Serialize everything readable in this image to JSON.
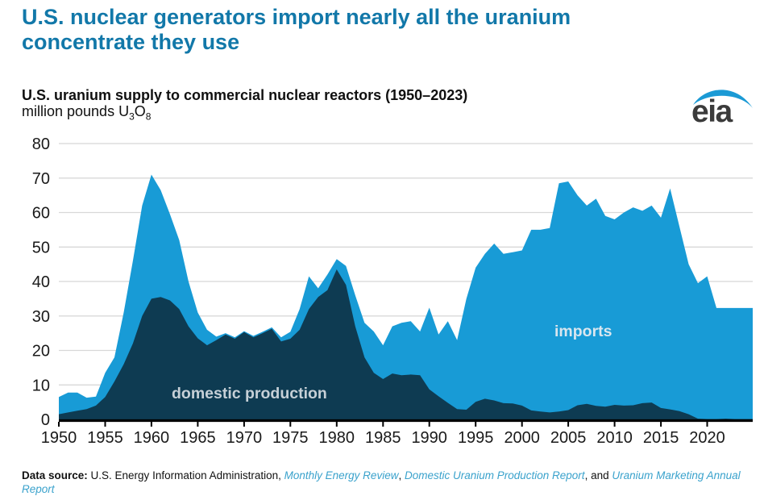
{
  "header": {
    "title_line1": "U.S. nuclear generators import nearly all the uranium",
    "title_line2": "concentrate they use",
    "title_color": "#1278a9"
  },
  "chart_header": {
    "title": "U.S. uranium supply to commercial nuclear reactors (1950–2023)",
    "units_prefix": "million pounds U",
    "units_sub1": "3",
    "units_mid": "O",
    "units_sub2": "8"
  },
  "logo": {
    "text": "eia",
    "text_color": "#3b3b3b",
    "swoosh_color": "#1b9ad5"
  },
  "chart_data": {
    "type": "area",
    "stacked": true,
    "title": "U.S. uranium supply to commercial nuclear reactors (1950–2023)",
    "units": "million pounds U3O8",
    "x_range": [
      1950,
      2023
    ],
    "ylim": [
      0,
      80
    ],
    "grid": "horizontal",
    "legend": "in-plot labels",
    "y_ticks": [
      0,
      10,
      20,
      30,
      40,
      50,
      60,
      70,
      80
    ],
    "x_ticks": [
      1950,
      1955,
      1960,
      1965,
      1970,
      1975,
      1980,
      1985,
      1990,
      1995,
      2000,
      2005,
      2010,
      2015,
      2020
    ],
    "years": [
      1950,
      1951,
      1952,
      1953,
      1954,
      1955,
      1956,
      1957,
      1958,
      1959,
      1960,
      1961,
      1962,
      1963,
      1964,
      1965,
      1966,
      1967,
      1968,
      1969,
      1970,
      1971,
      1972,
      1973,
      1974,
      1975,
      1976,
      1977,
      1978,
      1979,
      1980,
      1981,
      1982,
      1983,
      1984,
      1985,
      1986,
      1987,
      1988,
      1989,
      1990,
      1991,
      1992,
      1993,
      1994,
      1995,
      1996,
      1997,
      1998,
      1999,
      2000,
      2001,
      2002,
      2003,
      2004,
      2005,
      2006,
      2007,
      2008,
      2009,
      2010,
      2011,
      2012,
      2013,
      2014,
      2015,
      2016,
      2017,
      2018,
      2019,
      2020,
      2021,
      2022,
      2023
    ],
    "series": [
      {
        "name": "domestic production",
        "color": "#0e3b52",
        "label_color": "#c6d0d7",
        "values": [
          1.5,
          2,
          2.5,
          3,
          4,
          6.5,
          11,
          16,
          22,
          30,
          35,
          35.5,
          34.5,
          32,
          27,
          23.5,
          21.5,
          23,
          24.6,
          23.4,
          25.3,
          23.8,
          25,
          26.3,
          22.6,
          23.4,
          26,
          32,
          35.5,
          37.5,
          43.5,
          39,
          27,
          18,
          13.5,
          11.7,
          13.3,
          12.8,
          13,
          12.8,
          8.7,
          6.7,
          4.8,
          3,
          2.8,
          5.1,
          6,
          5.5,
          4.7,
          4.6,
          4,
          2.6,
          2.3,
          2,
          2.3,
          2.7,
          4.1,
          4.5,
          3.9,
          3.7,
          4.2,
          4,
          4.1,
          4.7,
          4.9,
          3.3,
          2.9,
          2.4,
          1.5,
          0.2,
          0.1,
          0.1,
          0.2,
          0.1
        ]
      },
      {
        "name": "imports",
        "color": "#189bd6",
        "label_color": "#d9e6ef",
        "values": [
          5,
          5.8,
          5.3,
          3.3,
          2.6,
          7,
          7,
          15,
          24,
          32,
          36,
          31,
          25,
          20,
          13,
          7.5,
          4.5,
          1,
          0.4,
          0.4,
          0.3,
          0.4,
          0.4,
          0.4,
          1.2,
          2,
          6,
          9.5,
          2.5,
          4.5,
          3,
          5.5,
          9,
          10,
          12,
          9.8,
          13.7,
          15.2,
          15.5,
          12.7,
          23.7,
          17.9,
          23.7,
          20,
          32.2,
          38.9,
          42,
          45.5,
          43.3,
          43.9,
          45,
          52.4,
          52.7,
          53.5,
          66.2,
          66.3,
          60.9,
          57.5,
          60.1,
          55.3,
          53.8,
          56,
          57.4,
          55.8,
          57.1,
          55.2,
          64.1,
          53.6,
          43.5,
          39.3,
          41.4,
          32.2,
          32.1,
          32.2
        ]
      }
    ],
    "gridline_color": "#d8d8d8",
    "axis_color": "#000000",
    "tick_label_color": "#1a1a1a"
  },
  "footer": {
    "label": "Data source:",
    "source": " U.S. Energy Information Administration, ",
    "link1": "Monthly Energy Review",
    "sep1": ", ",
    "link2": "Domestic Uranium Production Report",
    "sep2": ", and ",
    "link3_line1": "Uranium Marketing Annual",
    "link3_line2": "Report",
    "link_color": "#3aa2cc"
  }
}
